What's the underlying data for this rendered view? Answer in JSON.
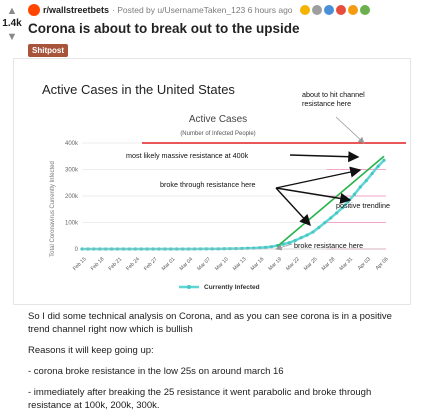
{
  "post": {
    "score": "1.4k",
    "subreddit": "r/wallstreetbets",
    "posted_by": "· Posted by u/UsernameTaken_123 6 hours ago",
    "title": "Corona is about to break out to the upside",
    "flair": "Shitpost",
    "awards": [
      "#f5b301",
      "#9e9e9e",
      "#4a90d9",
      "#e74c3c",
      "#f39c12",
      "#6ab04c"
    ],
    "body": [
      "So I did some technical analysis on Corona, and as you can see corona is in a positive trend channel right now which is bullish",
      "Reasons it will keep going up:",
      "- corona broke resistance in the low 25s on around march 16",
      "- immediately after breaking the 25 resistance it went parabolic and broke through resistance at 100k, 200k, 300k."
    ]
  },
  "chart_data": {
    "type": "line",
    "heading": "Active Cases in the United States",
    "title": "Active Cases",
    "subtitle": "(Number of Infected People)",
    "ylabel": "Total Coronavirus Currently Infected",
    "legend": "Currently Infected",
    "ylim": [
      0,
      400000
    ],
    "yticks": [
      0,
      100000,
      200000,
      300000,
      400000
    ],
    "ytick_labels": [
      "0",
      "100k",
      "200k",
      "300k",
      "400k"
    ],
    "x": [
      "Feb 15",
      "Feb 16",
      "Feb 17",
      "Feb 18",
      "Feb 19",
      "Feb 20",
      "Feb 21",
      "Feb 22",
      "Feb 23",
      "Feb 24",
      "Feb 25",
      "Feb 26",
      "Feb 27",
      "Feb 28",
      "Feb 29",
      "Mar 01",
      "Mar 02",
      "Mar 03",
      "Mar 04",
      "Mar 05",
      "Mar 06",
      "Mar 07",
      "Mar 08",
      "Mar 09",
      "Mar 10",
      "Mar 11",
      "Mar 12",
      "Mar 13",
      "Mar 14",
      "Mar 15",
      "Mar 16",
      "Mar 17",
      "Mar 18",
      "Mar 19",
      "Mar 20",
      "Mar 21",
      "Mar 22",
      "Mar 23",
      "Mar 24",
      "Mar 25",
      "Mar 26",
      "Mar 27",
      "Mar 28",
      "Mar 29",
      "Mar 30",
      "Mar 31",
      "Apr 01",
      "Apr 02",
      "Apr 03",
      "Apr 04",
      "Apr 05",
      "Apr 06"
    ],
    "xtick_labels": [
      "Feb 15",
      "Feb 18",
      "Feb 21",
      "Feb 24",
      "Feb 27",
      "Mar 01",
      "Mar 04",
      "Mar 07",
      "Mar 10",
      "Mar 13",
      "Mar 16",
      "Mar 19",
      "Mar 22",
      "Mar 25",
      "Mar 28",
      "Mar 31",
      "Apr 03",
      "Apr 06"
    ],
    "values": [
      12,
      12,
      12,
      12,
      12,
      12,
      20,
      20,
      20,
      20,
      50,
      50,
      55,
      60,
      65,
      70,
      90,
      110,
      140,
      190,
      240,
      390,
      500,
      650,
      930,
      1250,
      1600,
      2100,
      2700,
      3400,
      4600,
      6100,
      8800,
      13100,
      18500,
      23500,
      32200,
      42600,
      52500,
      64000,
      81000,
      99000,
      117000,
      136000,
      156000,
      181000,
      206000,
      234000,
      258000,
      285000,
      312000,
      335000
    ],
    "trendline": {
      "label": "positive trendline",
      "from": [
        "Mar 19",
        10000
      ],
      "to": [
        "Apr 06",
        350000
      ]
    },
    "resistance_lines": [
      {
        "value": 400000,
        "color": "#e02020"
      },
      {
        "value": 300000,
        "color": "#f2a6c8"
      },
      {
        "value": 200000,
        "color": "#f2a6c8"
      },
      {
        "value": 100000,
        "color": "#f2a6c8"
      },
      {
        "value": 0,
        "color": "#f2a6c8"
      }
    ],
    "annotations": [
      "about to hit channel resistance here",
      "most likely massive resistance at 400k",
      "broke through resistance here",
      "positive trendline",
      "broke resistance here"
    ]
  }
}
